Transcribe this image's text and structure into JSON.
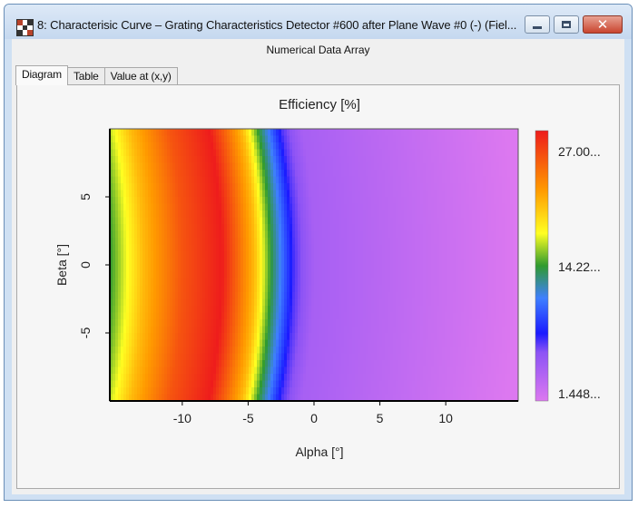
{
  "window": {
    "title": "8: Characterisic Curve – Grating Characteristics Detector #600 after Plane Wave #0 (-) (Fiel...",
    "subheader": "Numerical Data Array",
    "icon": "checker-app-icon",
    "buttons": {
      "minimize": "minimize-icon",
      "maximize": "maximize-icon",
      "close": "close-icon"
    }
  },
  "tabs": [
    {
      "label": "Diagram",
      "active": true
    },
    {
      "label": "Table",
      "active": false
    },
    {
      "label": "Value at (x,y)",
      "active": false
    }
  ],
  "chart_data": {
    "type": "heatmap",
    "title": "Efficiency  [%]",
    "xlabel": "Alpha [°]",
    "ylabel": "Beta [°]",
    "xticks": [
      -10,
      -5,
      0,
      5,
      10
    ],
    "yticks": [
      5,
      0,
      -5
    ],
    "xlim": [
      -15.5,
      15.5
    ],
    "ylim": [
      -10,
      10
    ],
    "colorbar": {
      "labels": [
        "27.00...",
        "14.22...",
        "1.448..."
      ],
      "max": 27.0,
      "mid": 14.22,
      "min": 1.448,
      "colors": [
        "#ee1c1c",
        "#ff9a00",
        "#ffff22",
        "#2f9a2f",
        "#3f7fff",
        "#1a1aff",
        "#8c53f5",
        "#dc78f0"
      ]
    },
    "profile": {
      "description_values_at_beta_0": [
        {
          "alpha": -15.5,
          "value": 14.2
        },
        {
          "alpha": -13.0,
          "value": 20.0
        },
        {
          "alpha": -10.0,
          "value": 24.5
        },
        {
          "alpha": -7.0,
          "value": 27.0
        },
        {
          "alpha": -4.5,
          "value": 20.0
        },
        {
          "alpha": -3.3,
          "value": 14.2
        },
        {
          "alpha": -1.5,
          "value": 7.0
        },
        {
          "alpha": 0.0,
          "value": 4.5
        },
        {
          "alpha": 15.5,
          "value": 1.448
        }
      ]
    }
  }
}
